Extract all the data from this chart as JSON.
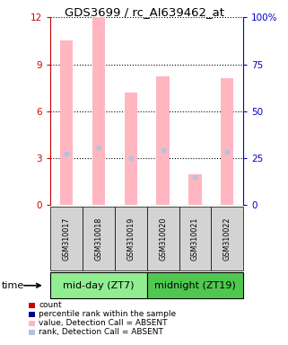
{
  "title": "GDS3699 / rc_AI639462_at",
  "samples": [
    "GSM310017",
    "GSM310018",
    "GSM310019",
    "GSM310020",
    "GSM310021",
    "GSM310022"
  ],
  "bar_heights": [
    10.5,
    12.0,
    7.2,
    8.2,
    2.0,
    8.1
  ],
  "rank_values": [
    3.3,
    3.7,
    3.0,
    3.5,
    1.8,
    3.4
  ],
  "ylim_left": [
    0,
    12
  ],
  "ylim_right": [
    0,
    100
  ],
  "yticks_left": [
    0,
    3,
    6,
    9,
    12
  ],
  "yticks_right": [
    0,
    25,
    50,
    75,
    100
  ],
  "bar_color_absent": "#FFB6C1",
  "rank_color_absent": "#B0C4DE",
  "bar_width": 0.4,
  "left_tick_color": "#CC0000",
  "right_tick_color": "#0000CC",
  "xlabel_area_color": "#D3D3D3",
  "group_labels": [
    "mid-day (ZT7)",
    "midnight (ZT19)"
  ],
  "group_colors": [
    "#90EE90",
    "#50C850"
  ],
  "title_fontsize": 9.5,
  "legend_items": [
    {
      "label": "count",
      "color": "#CC0000"
    },
    {
      "label": "percentile rank within the sample",
      "color": "#00008B"
    },
    {
      "label": "value, Detection Call = ABSENT",
      "color": "#FFB6C1"
    },
    {
      "label": "rank, Detection Call = ABSENT",
      "color": "#B0C4DE"
    }
  ]
}
